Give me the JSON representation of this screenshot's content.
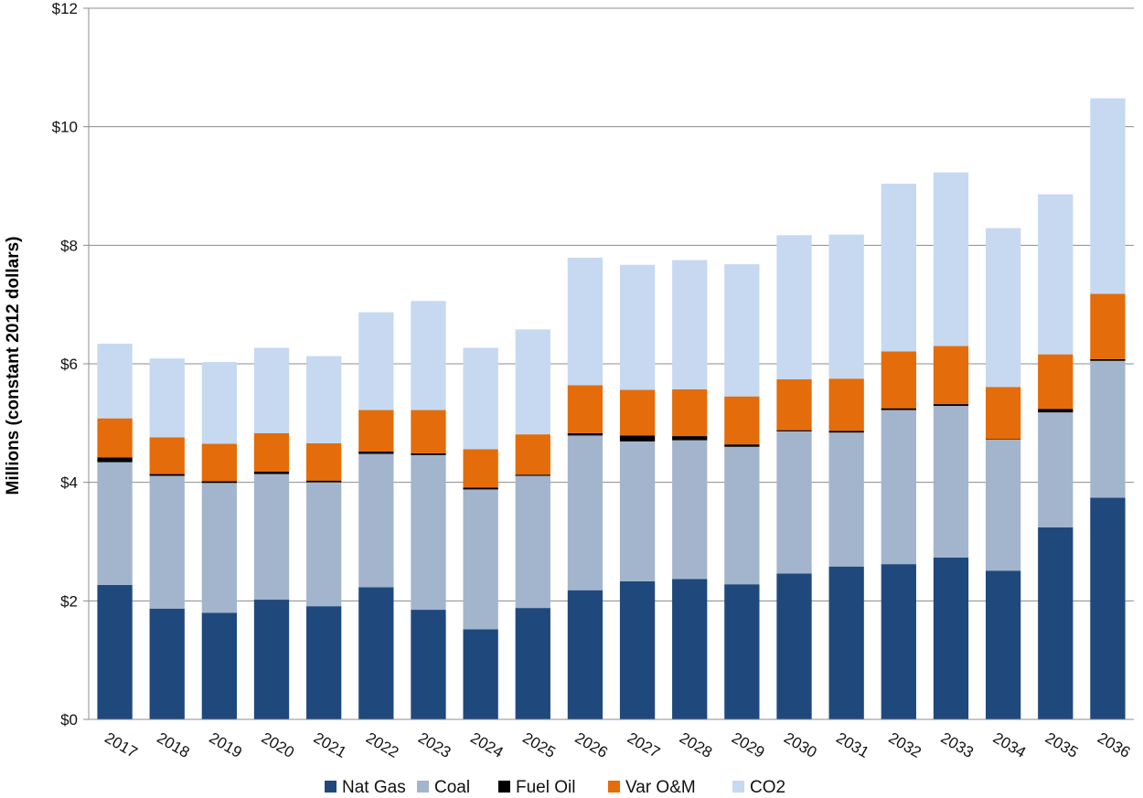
{
  "chart_data": {
    "type": "bar",
    "stacked": true,
    "title": "",
    "xlabel": "",
    "ylabel": "Millions (constant 2012 dollars)",
    "ylim": [
      0,
      12
    ],
    "yticks": [
      "$0",
      "$2",
      "$4",
      "$6",
      "$8",
      "$10",
      "$12"
    ],
    "grid": true,
    "legend_position": "bottom",
    "categories": [
      "2017",
      "2018",
      "2019",
      "2020",
      "2021",
      "2022",
      "2023",
      "2024",
      "2025",
      "2026",
      "2027",
      "2028",
      "2029",
      "2030",
      "2031",
      "2032",
      "2033",
      "2034",
      "2035",
      "2036"
    ],
    "series": [
      {
        "name": "Nat Gas",
        "color": "#1f497d",
        "values": [
          2.27,
          1.87,
          1.8,
          2.02,
          1.91,
          2.23,
          1.85,
          1.52,
          1.88,
          2.18,
          2.33,
          2.37,
          2.28,
          2.46,
          2.58,
          2.62,
          2.73,
          2.51,
          3.24,
          3.74
        ]
      },
      {
        "name": "Coal",
        "color": "#a3b5cc",
        "values": [
          2.07,
          2.24,
          2.19,
          2.12,
          2.09,
          2.25,
          2.61,
          2.36,
          2.23,
          2.61,
          2.36,
          2.34,
          2.32,
          2.4,
          2.26,
          2.6,
          2.56,
          2.21,
          1.94,
          2.31
        ]
      },
      {
        "name": "Fuel Oil",
        "color": "#000000",
        "values": [
          0.08,
          0.03,
          0.03,
          0.04,
          0.03,
          0.04,
          0.03,
          0.03,
          0.02,
          0.04,
          0.1,
          0.07,
          0.04,
          0.02,
          0.03,
          0.03,
          0.03,
          0.01,
          0.06,
          0.03
        ]
      },
      {
        "name": "Var O&M",
        "color": "#e46c0a",
        "values": [
          0.66,
          0.62,
          0.63,
          0.65,
          0.63,
          0.7,
          0.73,
          0.65,
          0.68,
          0.81,
          0.77,
          0.79,
          0.81,
          0.86,
          0.88,
          0.96,
          0.98,
          0.88,
          0.92,
          1.1
        ]
      },
      {
        "name": "CO2",
        "color": "#c6d9f1",
        "values": [
          1.26,
          1.33,
          1.38,
          1.44,
          1.47,
          1.65,
          1.84,
          1.71,
          1.77,
          2.15,
          2.11,
          2.18,
          2.23,
          2.43,
          2.43,
          2.83,
          2.93,
          2.68,
          2.7,
          3.3
        ]
      }
    ]
  }
}
